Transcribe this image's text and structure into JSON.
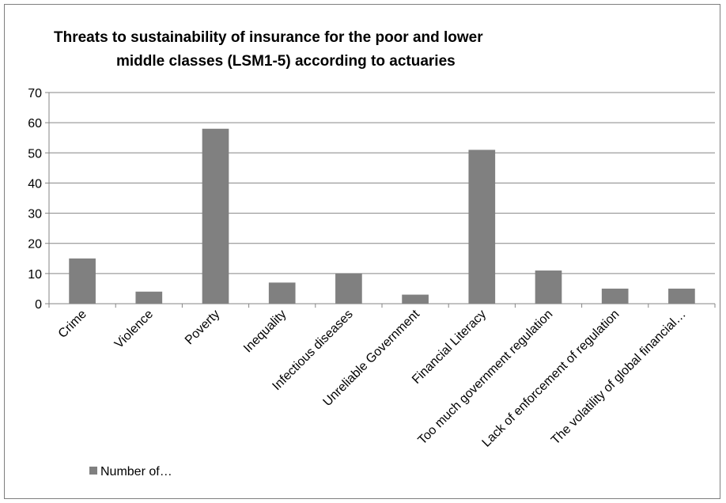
{
  "chart_data": {
    "type": "bar",
    "title_lines": [
      "Threats to sustainability of insurance for the poor and lower",
      "middle classes (LSM1-5) according to actuaries"
    ],
    "categories": [
      "Crime",
      "Violence",
      "Poverty",
      "Inequality",
      "Infectious diseases",
      "Unreliable Government",
      "Financial Literacy",
      "Too much government regulation",
      "Lack of enforcement of regulation",
      "The volatility of global financial…"
    ],
    "series": [
      {
        "name": "Number of…",
        "values": [
          15,
          4,
          58,
          7,
          10,
          3,
          51,
          11,
          5,
          5
        ]
      }
    ],
    "ylim": [
      0,
      70
    ],
    "yticks": [
      "0",
      "10",
      "20",
      "30",
      "40",
      "50",
      "60",
      "70"
    ],
    "grid": true,
    "legend_position": "bottom-left",
    "colors": {
      "bar": "#808080",
      "grid": "#868686",
      "axis": "#868686"
    }
  }
}
